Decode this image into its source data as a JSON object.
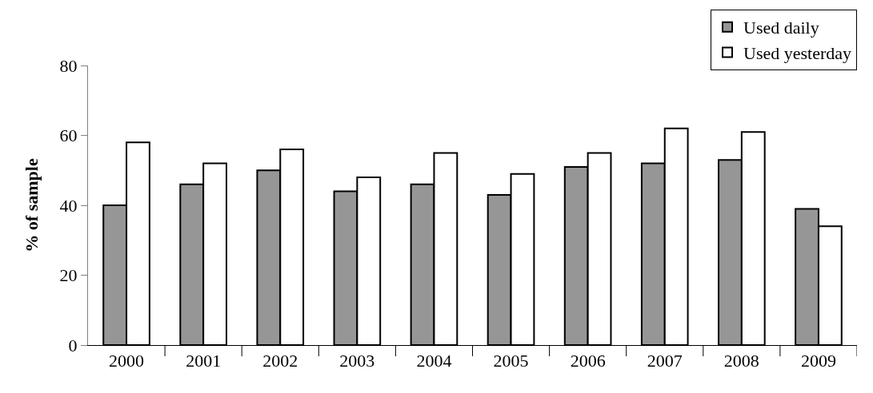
{
  "chart_data": {
    "type": "bar",
    "ylabel": "% of sample",
    "categories": [
      "2000",
      "2001",
      "2002",
      "2003",
      "2004",
      "2005",
      "2006",
      "2007",
      "2008",
      "2009"
    ],
    "series": [
      {
        "name": "Used daily",
        "color": "#969696",
        "values": [
          40,
          46,
          50,
          44,
          46,
          43,
          51,
          52,
          53,
          39
        ]
      },
      {
        "name": "Used yesterday",
        "color": "#ffffff",
        "values": [
          58,
          52,
          56,
          48,
          55,
          49,
          55,
          62,
          61,
          34
        ]
      }
    ],
    "ylim": [
      0,
      80
    ],
    "yticks": [
      0,
      20,
      40,
      60,
      80
    ],
    "grid": false,
    "legend": "top right"
  }
}
